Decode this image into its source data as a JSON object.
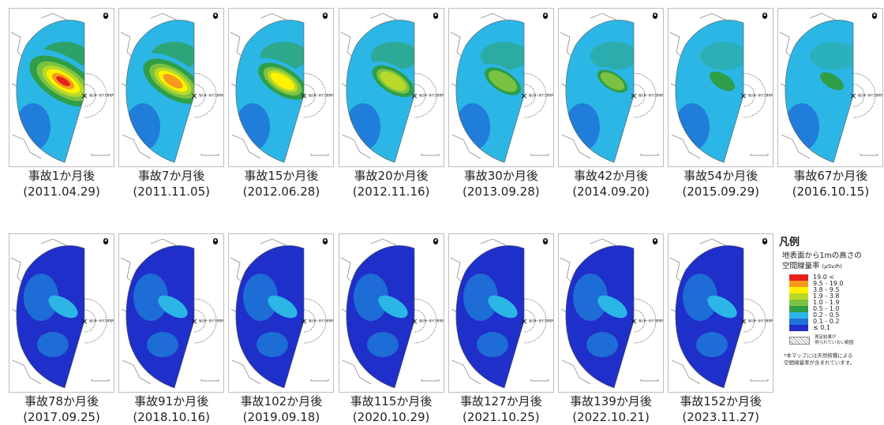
{
  "panels": [
    {
      "label": "事故1か月後",
      "date": "(2011.04.29)",
      "level": 1.0
    },
    {
      "label": "事故7か月後",
      "date": "(2011.11.05)",
      "level": 0.88
    },
    {
      "label": "事故15か月後",
      "date": "(2012.06.28)",
      "level": 0.72
    },
    {
      "label": "事故20か月後",
      "date": "(2012.11.16)",
      "level": 0.62
    },
    {
      "label": "事故30か月後",
      "date": "(2013.09.28)",
      "level": 0.54
    },
    {
      "label": "事故42か月後",
      "date": "(2014.09.20)",
      "level": 0.45
    },
    {
      "label": "事故54か月後",
      "date": "(2015.09.29)",
      "level": 0.38
    },
    {
      "label": "事故67か月後",
      "date": "(2016.10.15)",
      "level": 0.32
    },
    {
      "label": "事故78か月後",
      "date": "(2017.09.25)",
      "level": 0.27
    },
    {
      "label": "事故91か月後",
      "date": "(2018.10.16)",
      "level": 0.23
    },
    {
      "label": "事故102か月後",
      "date": "(2019.09.18)",
      "level": 0.2
    },
    {
      "label": "事故115か月後",
      "date": "(2020.10.29)",
      "level": 0.17
    },
    {
      "label": "事故127か月後",
      "date": "(2021.10.25)",
      "level": 0.14
    },
    {
      "label": "事故139か月後",
      "date": "(2022.10.21)",
      "level": 0.12
    },
    {
      "label": "事故152か月後",
      "date": "(2023.11.27)",
      "level": 0.1
    }
  ],
  "map_label": "福島第一原子力発電所",
  "legend": {
    "title": "凡例",
    "subtitle_line1": "地表面から1mの高さの",
    "subtitle_line2": "空間線量率",
    "unit": "(μSv/h)",
    "items": [
      {
        "color": "#e8201c",
        "label": "19.0 <"
      },
      {
        "color": "#f59a1c",
        "label": "9.5 - 19.0"
      },
      {
        "color": "#fff200",
        "label": "3.8 - 9.5"
      },
      {
        "color": "#b8d92a",
        "label": "1.9 - 3.8"
      },
      {
        "color": "#7cc242",
        "label": "1.0 - 1.9"
      },
      {
        "color": "#2e9e48",
        "label": "0.5 - 1.0"
      },
      {
        "color": "#2bb6e6",
        "label": "0.2 - 0.5"
      },
      {
        "color": "#1e73d6",
        "label": "0.1 - 0.2"
      },
      {
        "color": "#1f2fc9",
        "label": "≤ 0.1"
      }
    ],
    "nodata_line1": "測定結果が",
    "nodata_line2": "得られていない範囲",
    "note_line1": "*本マップには天然核種による",
    "note_line2": "空間線量率が含まれています。"
  }
}
